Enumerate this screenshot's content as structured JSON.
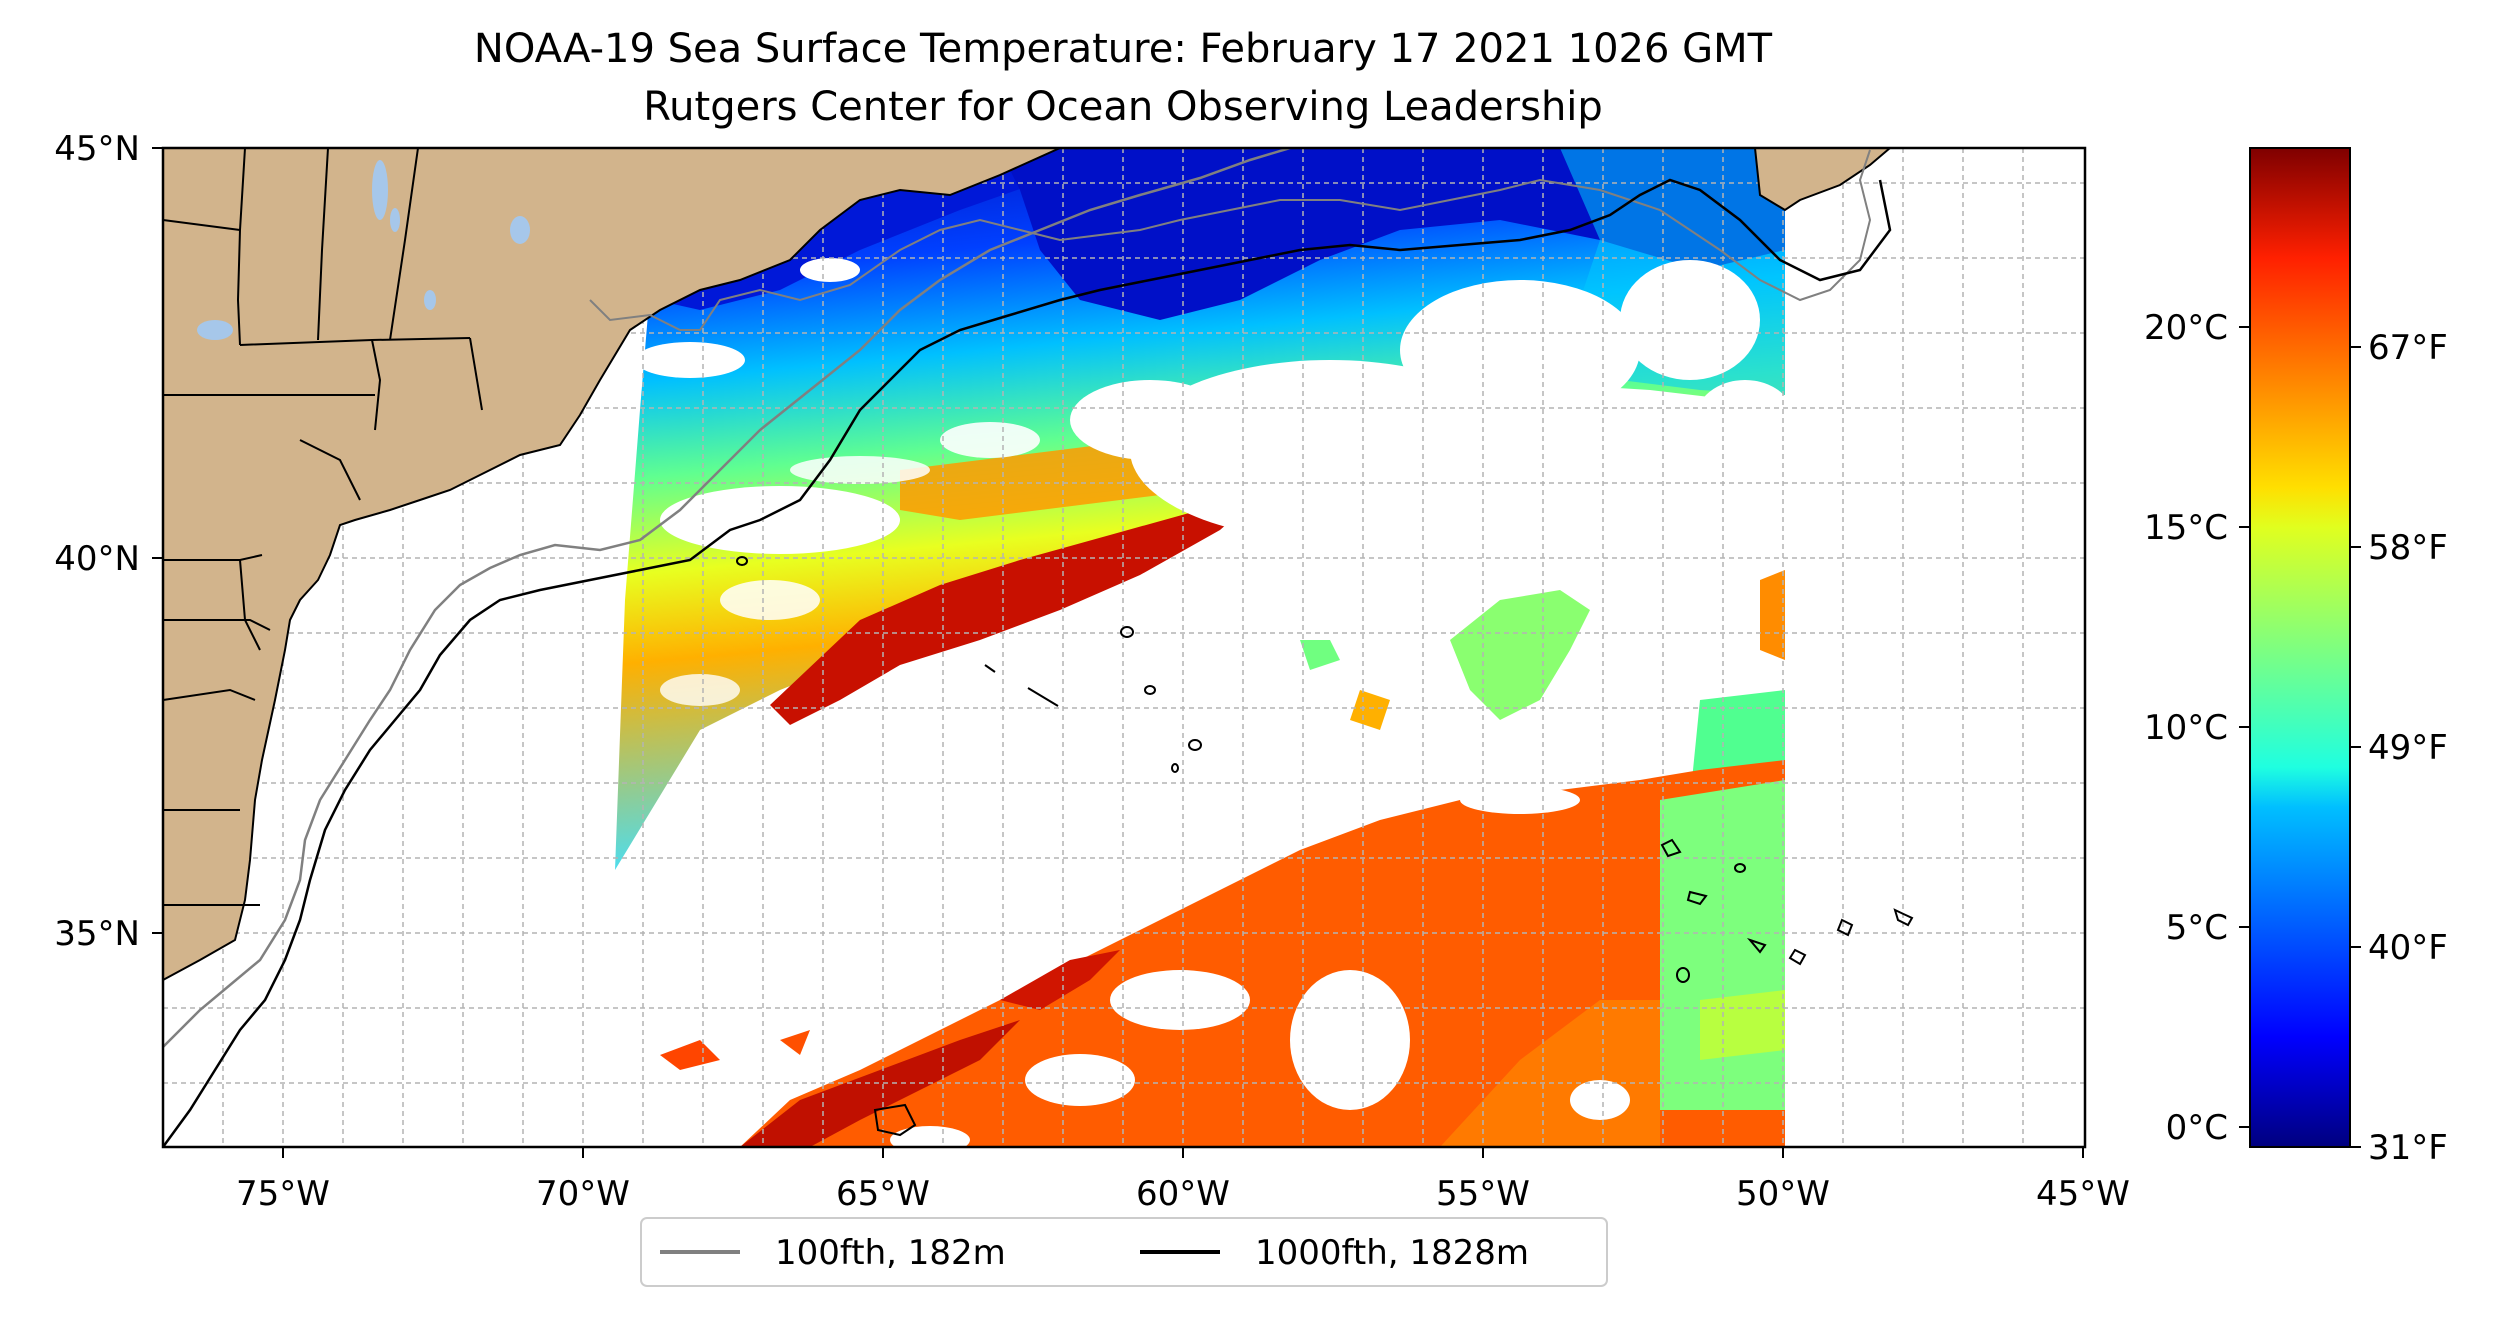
{
  "title": {
    "line1": "NOAA-19 Sea Surface Temperature: February 17 2021 1026 GMT",
    "line2": "Rutgers Center for Ocean Observing Leadership"
  },
  "map": {
    "lon_range": [
      -77,
      -45
    ],
    "lat_range": [
      32.3,
      45
    ],
    "lon_ticks": [
      {
        "value": -75,
        "label": "75°W"
      },
      {
        "value": -70,
        "label": "70°W"
      },
      {
        "value": -65,
        "label": "65°W"
      },
      {
        "value": -60,
        "label": "60°W"
      },
      {
        "value": -55,
        "label": "55°W"
      },
      {
        "value": -50,
        "label": "50°W"
      },
      {
        "value": -45,
        "label": "45°W"
      }
    ],
    "lat_ticks": [
      {
        "value": 45,
        "label": "45°N"
      },
      {
        "value": 40,
        "label": "40°N"
      },
      {
        "value": 35,
        "label": "35°N"
      }
    ],
    "gridlines": "dashed",
    "land_color": "#d2b48c",
    "lake_color": "#a6c7ea",
    "missing_data_color": "#ffffff"
  },
  "legend": {
    "items": [
      {
        "label": "100fth, 182m",
        "color": "#808080"
      },
      {
        "label": "1000fth, 1828m",
        "color": "#000000"
      }
    ],
    "placement": "bottom-center"
  },
  "colorbar": {
    "colormap": "jet",
    "range_c": [
      -0.5,
      24.5
    ],
    "celsius_ticks": [
      {
        "value": 0,
        "label": "0°C"
      },
      {
        "value": 5,
        "label": "5°C"
      },
      {
        "value": 10,
        "label": "10°C"
      },
      {
        "value": 15,
        "label": "15°C"
      },
      {
        "value": 20,
        "label": "20°C"
      }
    ],
    "fahrenheit_ticks": [
      {
        "value": 31,
        "label": "31°F"
      },
      {
        "value": 40,
        "label": "40°F"
      },
      {
        "value": 49,
        "label": "49°F"
      },
      {
        "value": 58,
        "label": "58°F"
      },
      {
        "value": 67,
        "label": "67°F"
      }
    ]
  }
}
